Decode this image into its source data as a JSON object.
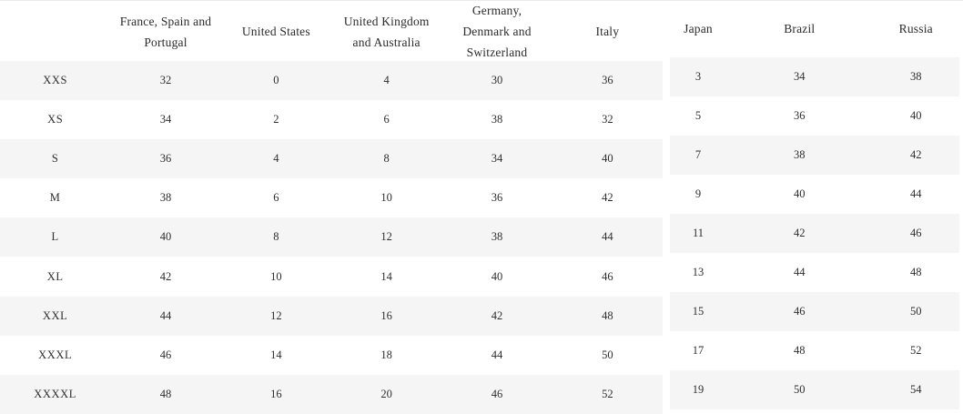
{
  "styles": {
    "stripe_color": "#f5f5f5",
    "top_rule_color": "#ececec",
    "text_color": "#2e2e2e"
  },
  "chart_data": [
    {
      "type": "table",
      "columns": [
        "",
        "France, Spain and Portugal",
        "United States",
        "United Kingdom and Australia",
        "Germany, Denmark and Switzerland",
        "Italy"
      ],
      "rows": [
        {
          "size": "XXS",
          "values": [
            "32",
            "0",
            "4",
            "30",
            "36"
          ]
        },
        {
          "size": "XS",
          "values": [
            "34",
            "2",
            "6",
            "38",
            "32"
          ]
        },
        {
          "size": "S",
          "values": [
            "36",
            "4",
            "8",
            "34",
            "40"
          ]
        },
        {
          "size": "M",
          "values": [
            "38",
            "6",
            "10",
            "36",
            "42"
          ]
        },
        {
          "size": "L",
          "values": [
            "40",
            "8",
            "12",
            "38",
            "44"
          ]
        },
        {
          "size": "XL",
          "values": [
            "42",
            "10",
            "14",
            "40",
            "46"
          ]
        },
        {
          "size": "XXL",
          "values": [
            "44",
            "12",
            "16",
            "42",
            "48"
          ]
        },
        {
          "size": "XXXL",
          "values": [
            "46",
            "14",
            "18",
            "44",
            "50"
          ]
        },
        {
          "size": "XXXXL",
          "values": [
            "48",
            "16",
            "20",
            "46",
            "52"
          ]
        }
      ]
    },
    {
      "type": "table",
      "columns": [
        "Japan",
        "Brazil",
        "Russia"
      ],
      "rows": [
        {
          "values": [
            "3",
            "34",
            "38"
          ]
        },
        {
          "values": [
            "5",
            "36",
            "40"
          ]
        },
        {
          "values": [
            "7",
            "38",
            "42"
          ]
        },
        {
          "values": [
            "9",
            "40",
            "44"
          ]
        },
        {
          "values": [
            "11",
            "42",
            "46"
          ]
        },
        {
          "values": [
            "13",
            "44",
            "48"
          ]
        },
        {
          "values": [
            "15",
            "46",
            "50"
          ]
        },
        {
          "values": [
            "17",
            "48",
            "52"
          ]
        },
        {
          "values": [
            "19",
            "50",
            "54"
          ]
        }
      ]
    }
  ]
}
